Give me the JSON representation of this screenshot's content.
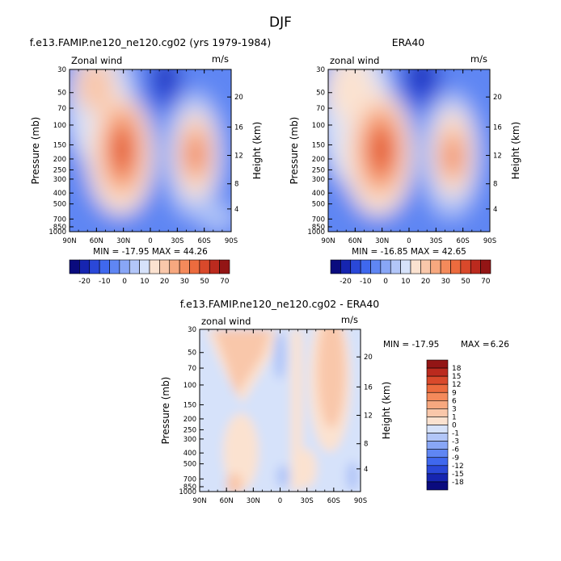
{
  "page_title": "DJF",
  "chart_data": [
    {
      "type": "heatmap",
      "title": "f.e13.FAMIP.ne120_ne120.cg02 (yrs 1979-1984)",
      "field_label": "Zonal wind",
      "units": "m/s",
      "ylabel": "Pressure (mb)",
      "ylabel_right": "Height (km)",
      "x_ticks": [
        "90N",
        "60N",
        "30N",
        "0",
        "30S",
        "60S",
        "90S"
      ],
      "y_ticks": [
        "30",
        "50",
        "70",
        "100",
        "150",
        "200",
        "250",
        "300",
        "400",
        "500",
        "700",
        "850",
        "1000"
      ],
      "height_ticks": [
        "20",
        "16",
        "12",
        "8",
        "4"
      ],
      "min_label": "MIN = -17.95",
      "max_label": "MAX = 44.26",
      "min": -17.95,
      "max": 44.26,
      "features": [
        {
          "lat": 30,
          "p": 200,
          "value": 44.26
        },
        {
          "lat": 75,
          "p": 50,
          "value": 15
        },
        {
          "lat": -45,
          "p": 200,
          "value": 32
        },
        {
          "lat": 0,
          "p": 40,
          "value": -17.95
        }
      ]
    },
    {
      "type": "heatmap",
      "title": "ERA40",
      "field_label": "zonal wind",
      "units": "m/s",
      "ylabel": "Pressure (mb)",
      "ylabel_right": "Height (km)",
      "x_ticks": [
        "90N",
        "60N",
        "30N",
        "0",
        "30S",
        "60S",
        "90S"
      ],
      "y_ticks": [
        "30",
        "50",
        "70",
        "100",
        "150",
        "200",
        "250",
        "300",
        "400",
        "500",
        "700",
        "850",
        "1000"
      ],
      "height_ticks": [
        "20",
        "16",
        "12",
        "8",
        "4"
      ],
      "min_label": "MIN = -16.85",
      "max_label": "MAX = 42.65",
      "min": -16.85,
      "max": 42.65,
      "features": [
        {
          "lat": 30,
          "p": 200,
          "value": 42.65
        },
        {
          "lat": 75,
          "p": 40,
          "value": 12
        },
        {
          "lat": -45,
          "p": 200,
          "value": 30
        },
        {
          "lat": 10,
          "p": 30,
          "value": -16.85
        }
      ]
    },
    {
      "type": "heatmap",
      "title": "f.e13.FAMIP.ne120_ne120.cg02 - ERA40",
      "field_label": "zonal wind",
      "units": "m/s",
      "ylabel": "Pressure (mb)",
      "ylabel_right": "Height (km)",
      "x_ticks": [
        "90N",
        "60N",
        "30N",
        "0",
        "30S",
        "60S",
        "90S"
      ],
      "y_ticks": [
        "30",
        "50",
        "70",
        "100",
        "150",
        "200",
        "250",
        "300",
        "400",
        "500",
        "700",
        "850",
        "1000"
      ],
      "height_ticks": [
        "20",
        "16",
        "12",
        "8",
        "4"
      ],
      "min_label": "MIN = -17.95",
      "max_label": "MAX =",
      "max_value_label": "6.26",
      "min": -17.95,
      "max": 6.26
    }
  ],
  "colorbar_main": {
    "labels": [
      "-20",
      "-10",
      "0",
      "10",
      "20",
      "30",
      "50",
      "70"
    ],
    "colors": [
      "#0a0b7e",
      "#1625b0",
      "#2a48d8",
      "#3f68ee",
      "#5f86f3",
      "#88a6f6",
      "#b2c6f8",
      "#d6e2fa",
      "#fbe2d0",
      "#f9c7aa",
      "#f7a87f",
      "#f48a5b",
      "#ec6b3e",
      "#d9492b",
      "#bb2a1e",
      "#931515"
    ]
  },
  "colorbar_diff": {
    "labels": [
      "18",
      "15",
      "12",
      "9",
      "6",
      "3",
      "1",
      "0",
      "-1",
      "-3",
      "-6",
      "-9",
      "-12",
      "-15",
      "-18"
    ],
    "colors": [
      "#931515",
      "#bb2a1e",
      "#d9492b",
      "#ec6b3e",
      "#f48a5b",
      "#f7a87f",
      "#f9c7aa",
      "#fbe2d0",
      "#d6e2fa",
      "#b2c6f8",
      "#88a6f6",
      "#5f86f3",
      "#3f68ee",
      "#2a48d8",
      "#1625b0",
      "#0a0b7e"
    ]
  }
}
